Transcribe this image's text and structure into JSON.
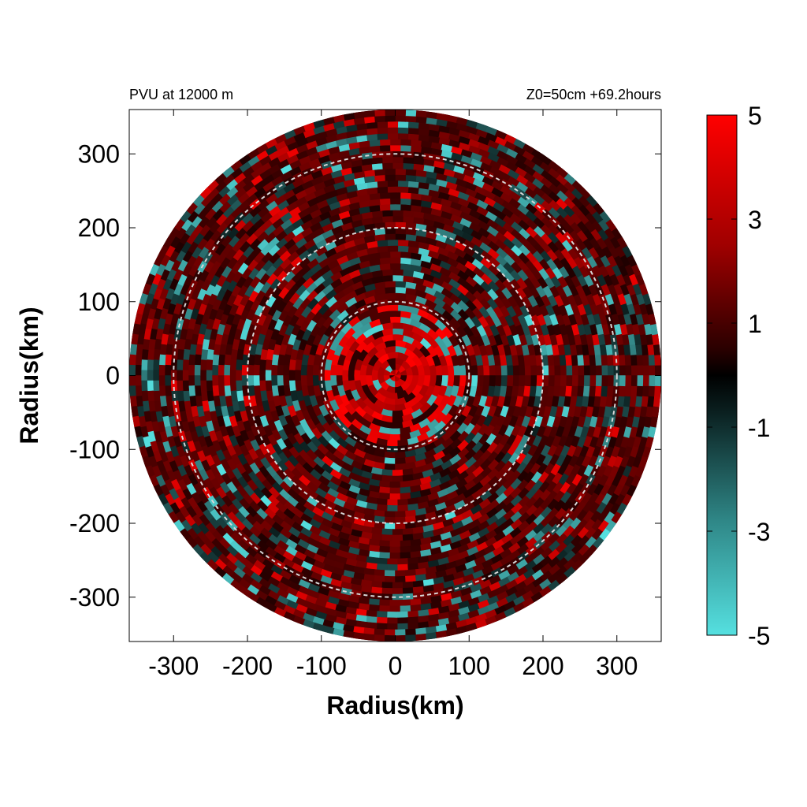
{
  "chart_data": {
    "type": "heatmap",
    "title_left": "PVU at 12000 m",
    "title_right": "Z0=50cm  +69.2hours",
    "xlabel": "Radius(km)",
    "ylabel": "Radius(km)",
    "xlim": [
      -360,
      360
    ],
    "ylim": [
      -360,
      360
    ],
    "x_ticks": [
      -300,
      -200,
      -100,
      0,
      100,
      200,
      300
    ],
    "y_ticks": [
      300,
      200,
      100,
      0,
      -100,
      -200,
      -300
    ],
    "x_tick_labels": [
      "-300",
      "-200",
      "-100",
      "0",
      "100",
      "200",
      "300"
    ],
    "y_tick_labels": [
      "300",
      "200",
      "100",
      "0",
      "-100",
      "-200",
      "-300"
    ],
    "domain_radius_km": 360,
    "reference_rings_km": [
      100,
      200,
      300
    ],
    "colorbar": {
      "range": [
        -5,
        5
      ],
      "tick_labels": [
        "5",
        "3",
        "1",
        "-1",
        "-3",
        "-5"
      ],
      "tick_values": [
        5,
        3,
        1,
        -1,
        -3,
        -5
      ],
      "colors": {
        "max": "#ff0000",
        "zero": "#000000",
        "min": "#55e0e0"
      }
    },
    "field_description_values": {
      "core_radius_km": 85,
      "core_value": 5,
      "eyewall_fringe_value": -4,
      "background_value": 0.8
    },
    "grid": false
  }
}
